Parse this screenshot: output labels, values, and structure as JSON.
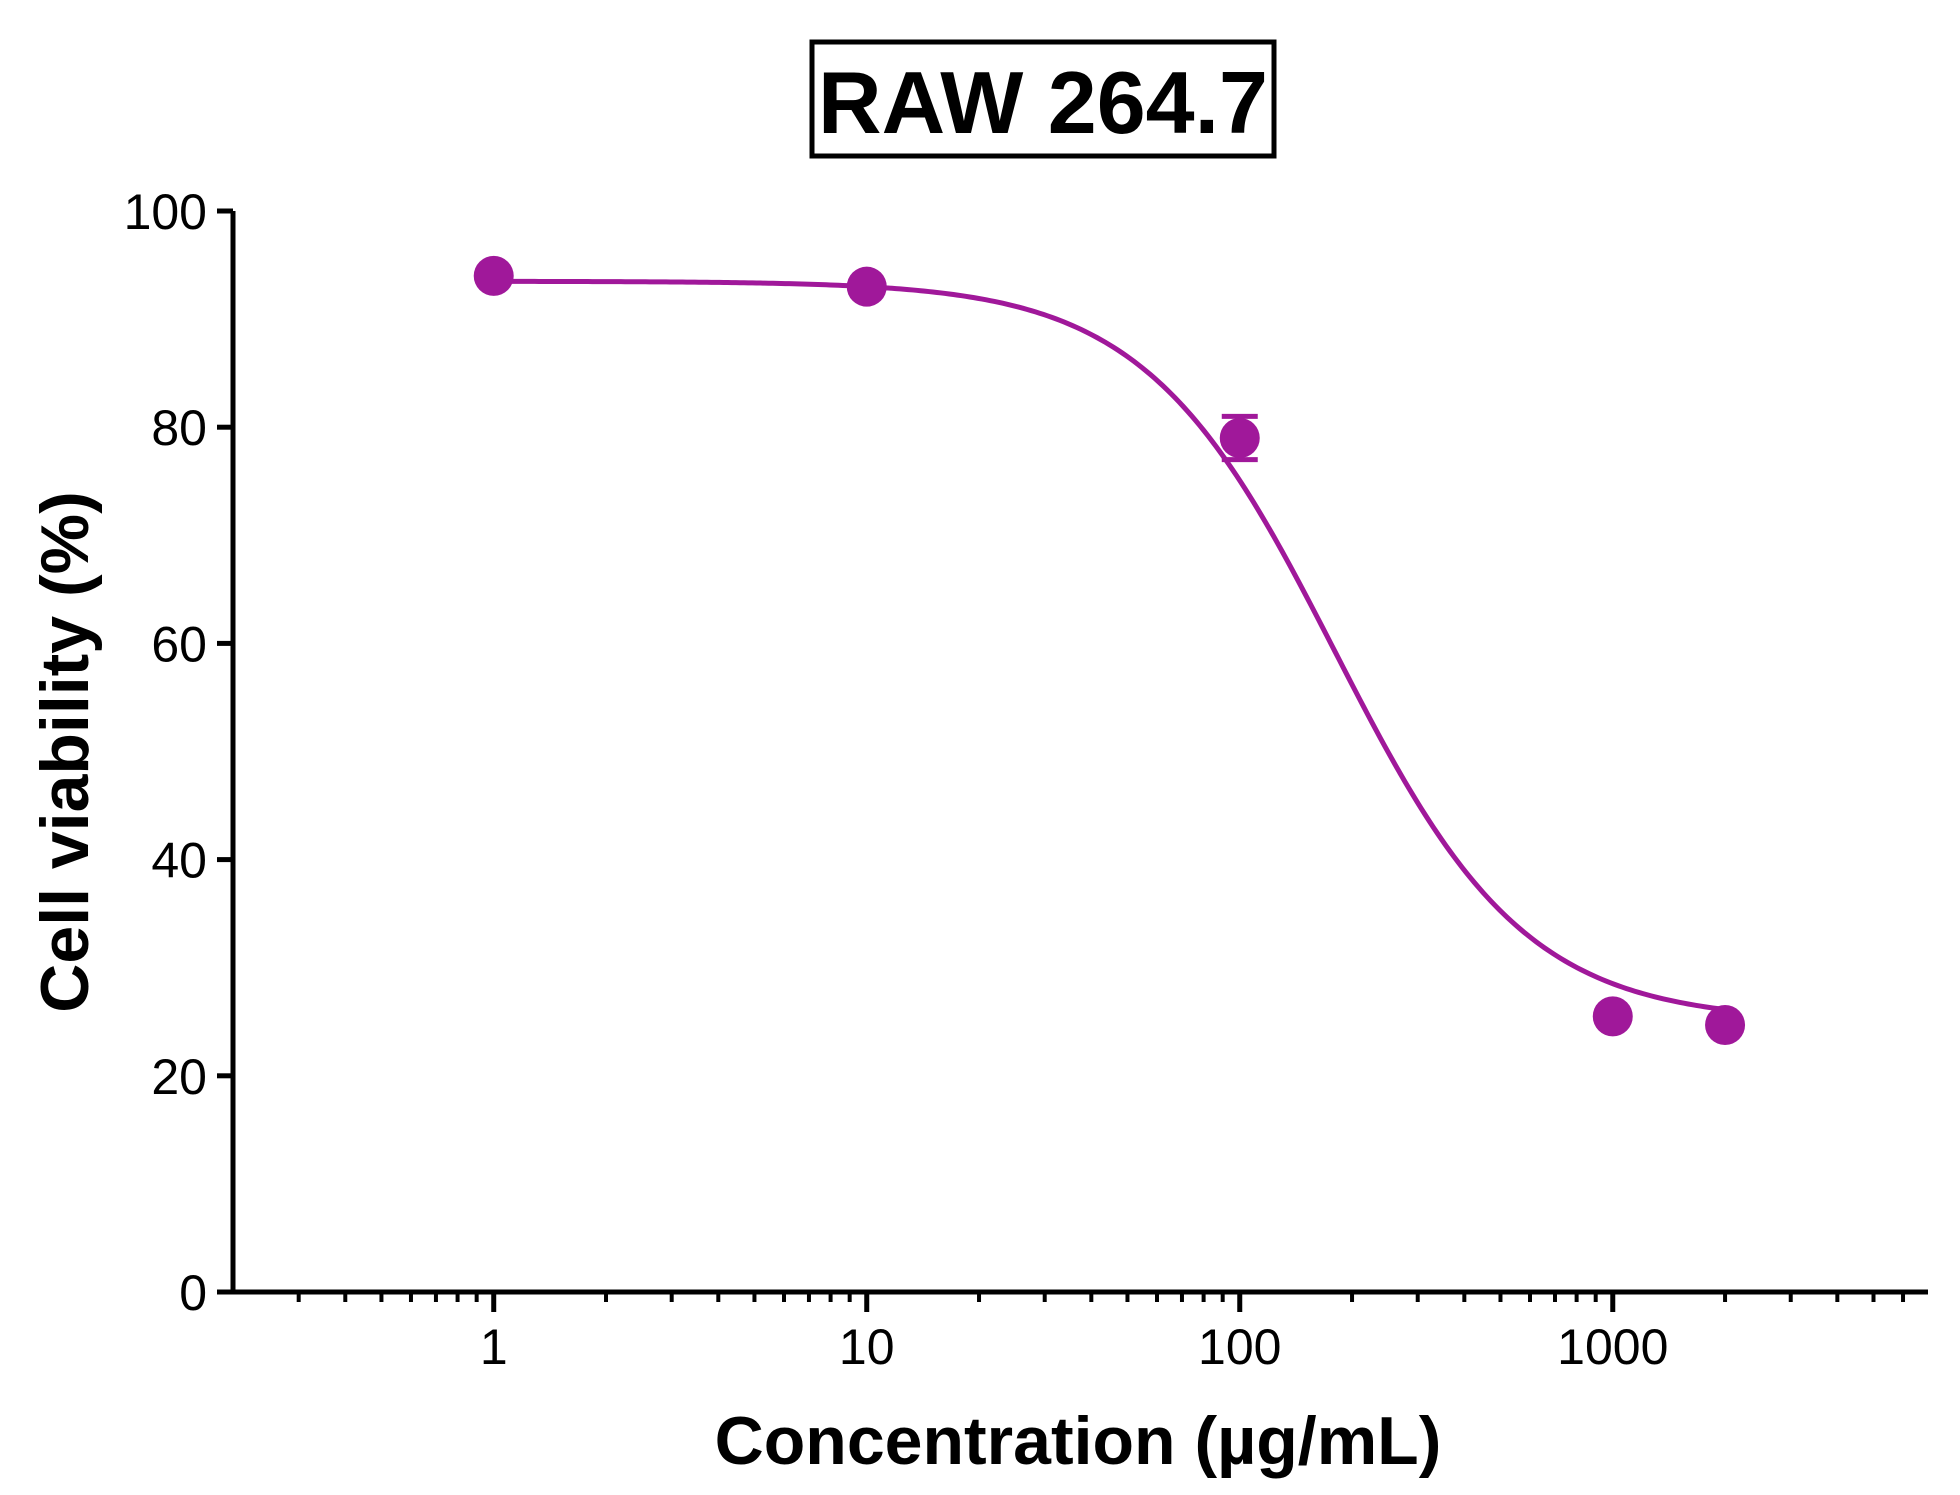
{
  "chart_data": {
    "type": "scatter",
    "title": "RAW 264.7",
    "xlabel": "Concentration (µg/mL)",
    "ylabel": "Cell viability (%)",
    "x_scale": "log",
    "xlim": [
      0.2,
      7000
    ],
    "ylim": [
      0,
      100
    ],
    "x_ticks": [
      1,
      10,
      100,
      1000
    ],
    "x_tick_labels": [
      "1",
      "10",
      "100",
      "1000"
    ],
    "y_ticks": [
      0,
      20,
      40,
      60,
      80,
      100
    ],
    "y_tick_labels": [
      "0",
      "20",
      "40",
      "60",
      "80",
      "100"
    ],
    "grid": false,
    "color": "#A0189A",
    "series": [
      {
        "x": [
          1,
          10,
          100,
          1000,
          2000
        ],
        "y": [
          94,
          93,
          79,
          25.5,
          24.7
        ],
        "error": [
          0,
          0,
          2,
          0,
          0
        ]
      }
    ],
    "fit": {
      "type": "sigmoid",
      "top": 93.5,
      "bottom": 25,
      "ec50": 180,
      "hill": 1.7
    }
  }
}
